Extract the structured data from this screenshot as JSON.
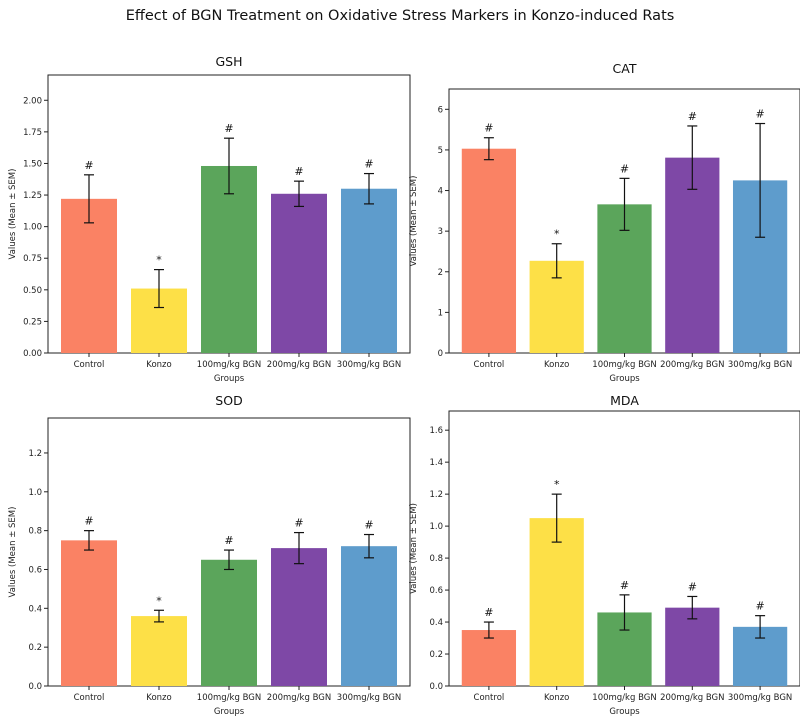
{
  "figure": {
    "title": "Effect of BGN Treatment on Oxidative Stress Markers in Konzo-induced Rats"
  },
  "colors": {
    "Control": "#fa8264",
    "Konzo": "#fde047",
    "100mg/kg BGN": "#5ba55b",
    "200mg/kg BGN": "#7e48a6",
    "300mg/kg BGN": "#5e9ccc"
  },
  "chart_data": [
    {
      "type": "bar",
      "title": "GSH",
      "categories": [
        "Control",
        "Konzo",
        "100mg/kg BGN",
        "200mg/kg BGN",
        "300mg/kg BGN"
      ],
      "values": [
        1.22,
        0.51,
        1.48,
        1.26,
        1.3
      ],
      "errors": [
        0.19,
        0.15,
        0.22,
        0.1,
        0.12
      ],
      "markers": [
        "#",
        "*",
        "#",
        "#",
        "#"
      ],
      "xlabel": "Groups",
      "ylabel": "Values (Mean ± SEM)",
      "ylim": [
        0,
        2.2
      ],
      "yticks": [
        "0.00",
        "0.25",
        "0.50",
        "0.75",
        "1.00",
        "1.25",
        "1.50",
        "1.75",
        "2.00"
      ]
    },
    {
      "type": "bar",
      "title": "CAT",
      "categories": [
        "Control",
        "Konzo",
        "100mg/kg BGN",
        "200mg/kg BGN",
        "300mg/kg BGN"
      ],
      "values": [
        5.03,
        2.27,
        3.66,
        4.81,
        4.25
      ],
      "errors": [
        0.27,
        0.42,
        0.64,
        0.78,
        1.4
      ],
      "markers": [
        "#",
        "*",
        "#",
        "#",
        "#"
      ],
      "xlabel": "Groups",
      "ylabel": "Values (Mean ± SEM)",
      "ylim": [
        0,
        6.5
      ],
      "yticks": [
        "0",
        "1",
        "2",
        "3",
        "4",
        "5",
        "6"
      ]
    },
    {
      "type": "bar",
      "title": "SOD",
      "categories": [
        "Control",
        "Konzo",
        "100mg/kg BGN",
        "200mg/kg BGN",
        "300mg/kg BGN"
      ],
      "values": [
        0.75,
        0.36,
        0.65,
        0.71,
        0.72
      ],
      "errors": [
        0.05,
        0.03,
        0.05,
        0.08,
        0.06
      ],
      "markers": [
        "#",
        "*",
        "#",
        "#",
        "#"
      ],
      "xlabel": "Groups",
      "ylabel": "Values (Mean ± SEM)",
      "ylim": [
        0,
        1.38
      ],
      "yticks": [
        "0.0",
        "0.2",
        "0.4",
        "0.6",
        "0.8",
        "1.0",
        "1.2"
      ]
    },
    {
      "type": "bar",
      "title": "MDA",
      "categories": [
        "Control",
        "Konzo",
        "100mg/kg BGN",
        "200mg/kg BGN",
        "300mg/kg BGN"
      ],
      "values": [
        0.35,
        1.05,
        0.46,
        0.49,
        0.37
      ],
      "errors": [
        0.05,
        0.15,
        0.11,
        0.07,
        0.07
      ],
      "markers": [
        "#",
        "*",
        "#",
        "#",
        "#"
      ],
      "xlabel": "Groups",
      "ylabel": "Values (Mean ± SEM)",
      "ylim": [
        0,
        1.72
      ],
      "yticks": [
        "0.0",
        "0.2",
        "0.4",
        "0.6",
        "0.8",
        "1.0",
        "1.2",
        "1.4",
        "1.6"
      ]
    }
  ]
}
